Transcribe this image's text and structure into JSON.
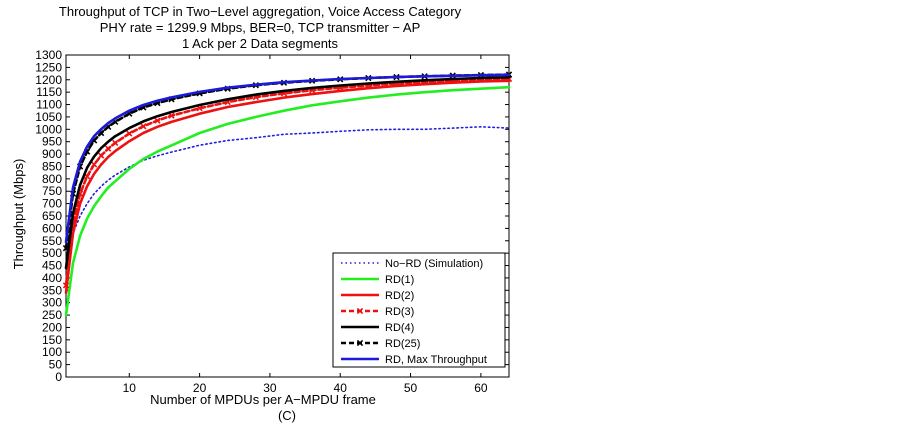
{
  "chart_data": {
    "type": "line",
    "title": [
      "Throughput of TCP in Two−Level aggregation, Voice Access Category",
      "PHY rate = 1299.9 Mbps, BER=0, TCP transmitter − AP",
      "1 Ack per 2 Data segments"
    ],
    "xlabel": "Number of MPDUs per A−MPDU frame",
    "xlabel_sub": "(C)",
    "ylabel": "Throughput (Mbps)",
    "xlim": [
      1,
      64
    ],
    "ylim": [
      0,
      1300
    ],
    "xticks": [
      10,
      20,
      30,
      40,
      50,
      60
    ],
    "yticks": [
      0,
      50,
      100,
      150,
      200,
      250,
      300,
      350,
      400,
      450,
      500,
      550,
      600,
      650,
      700,
      750,
      800,
      850,
      900,
      950,
      1000,
      1050,
      1100,
      1150,
      1200,
      1250,
      1300
    ],
    "legend_position": "lower-right",
    "x": [
      1,
      2,
      3,
      4,
      5,
      6,
      7,
      8,
      10,
      12,
      14,
      16,
      20,
      24,
      28,
      32,
      36,
      40,
      44,
      48,
      52,
      56,
      60,
      64
    ],
    "series": [
      {
        "name": "No−RD (Simulation)",
        "color": "#1f1fe0",
        "style": "dotted",
        "marker": "none",
        "values": [
          450,
          580,
          650,
          700,
          740,
          770,
          795,
          815,
          848,
          875,
          893,
          908,
          936,
          955,
          966,
          980,
          985,
          992,
          998,
          1000,
          1000,
          1005,
          1010,
          1005
        ]
      },
      {
        "name": "RD(1)",
        "color": "#22ee22",
        "style": "solid",
        "marker": "none",
        "values": [
          250,
          460,
          570,
          640,
          690,
          730,
          765,
          790,
          840,
          880,
          910,
          935,
          985,
          1022,
          1050,
          1075,
          1097,
          1113,
          1128,
          1140,
          1150,
          1158,
          1164,
          1170
        ]
      },
      {
        "name": "RD(2)",
        "color": "#ee1111",
        "style": "solid",
        "marker": "none",
        "values": [
          340,
          580,
          700,
          770,
          820,
          858,
          888,
          912,
          952,
          985,
          1010,
          1030,
          1063,
          1090,
          1110,
          1128,
          1142,
          1155,
          1166,
          1175,
          1182,
          1188,
          1193,
          1196
        ]
      },
      {
        "name": "RD(3)",
        "color": "#ee1111",
        "style": "dashed",
        "marker": "x",
        "values": [
          370,
          620,
          740,
          810,
          858,
          894,
          922,
          945,
          983,
          1012,
          1035,
          1055,
          1085,
          1110,
          1130,
          1145,
          1158,
          1168,
          1177,
          1185,
          1191,
          1196,
          1200,
          1203
        ]
      },
      {
        "name": "RD(4)",
        "color": "#000000",
        "style": "solid",
        "marker": "none",
        "values": [
          440,
          660,
          775,
          845,
          890,
          924,
          950,
          972,
          1005,
          1032,
          1053,
          1070,
          1098,
          1121,
          1140,
          1155,
          1167,
          1177,
          1185,
          1192,
          1198,
          1203,
          1207,
          1210
        ]
      },
      {
        "name": "RD(25)",
        "color": "#000000",
        "style": "dashed",
        "marker": "x",
        "values": [
          520,
          740,
          850,
          910,
          955,
          985,
          1010,
          1030,
          1063,
          1088,
          1106,
          1121,
          1145,
          1164,
          1178,
          1188,
          1196,
          1202,
          1207,
          1211,
          1214,
          1217,
          1219,
          1221
        ]
      },
      {
        "name": "RD, Max Throughput",
        "color": "#1a1ad8",
        "style": "solid",
        "marker": "none",
        "values": [
          545,
          765,
          870,
          930,
          972,
          1001,
          1025,
          1044,
          1075,
          1098,
          1115,
          1129,
          1151,
          1168,
          1180,
          1190,
          1197,
          1203,
          1207,
          1211,
          1214,
          1216,
          1218,
          1220
        ]
      }
    ]
  }
}
